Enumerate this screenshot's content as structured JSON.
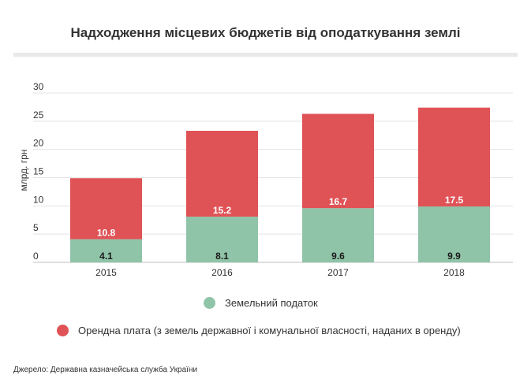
{
  "title": "Надходження місцевих бюджетів від оподаткування землі",
  "source": "Джерело: Державна казначейська служба України",
  "colors": {
    "land_tax": "#8fc4a8",
    "rent": "#df5256"
  },
  "chart_data": {
    "type": "bar",
    "stacked": true,
    "title": "Надходження місцевих бюджетів від оподаткування землі",
    "categories": [
      "2015",
      "2016",
      "2017",
      "2018"
    ],
    "series": [
      {
        "name": "Земельний податок",
        "color": "#8fc4a8",
        "values": [
          4.1,
          8.1,
          9.6,
          9.9
        ],
        "labels": [
          "4.1",
          "8.1",
          "9.6",
          "9.9"
        ]
      },
      {
        "name": "Орендна плата (з земель державної і комунальної власності, наданих в оренду)",
        "color": "#df5256",
        "values": [
          10.8,
          15.2,
          16.7,
          17.5
        ],
        "labels": [
          "10.8",
          "15.2",
          "16.7",
          "17.5"
        ]
      }
    ],
    "ylabel": "млрд. грн",
    "xlabel": "",
    "ylim": [
      0,
      30
    ],
    "yticks": [
      "0",
      "5",
      "10",
      "15",
      "20",
      "25",
      "30"
    ],
    "grid": true,
    "legend_position": "bottom"
  }
}
